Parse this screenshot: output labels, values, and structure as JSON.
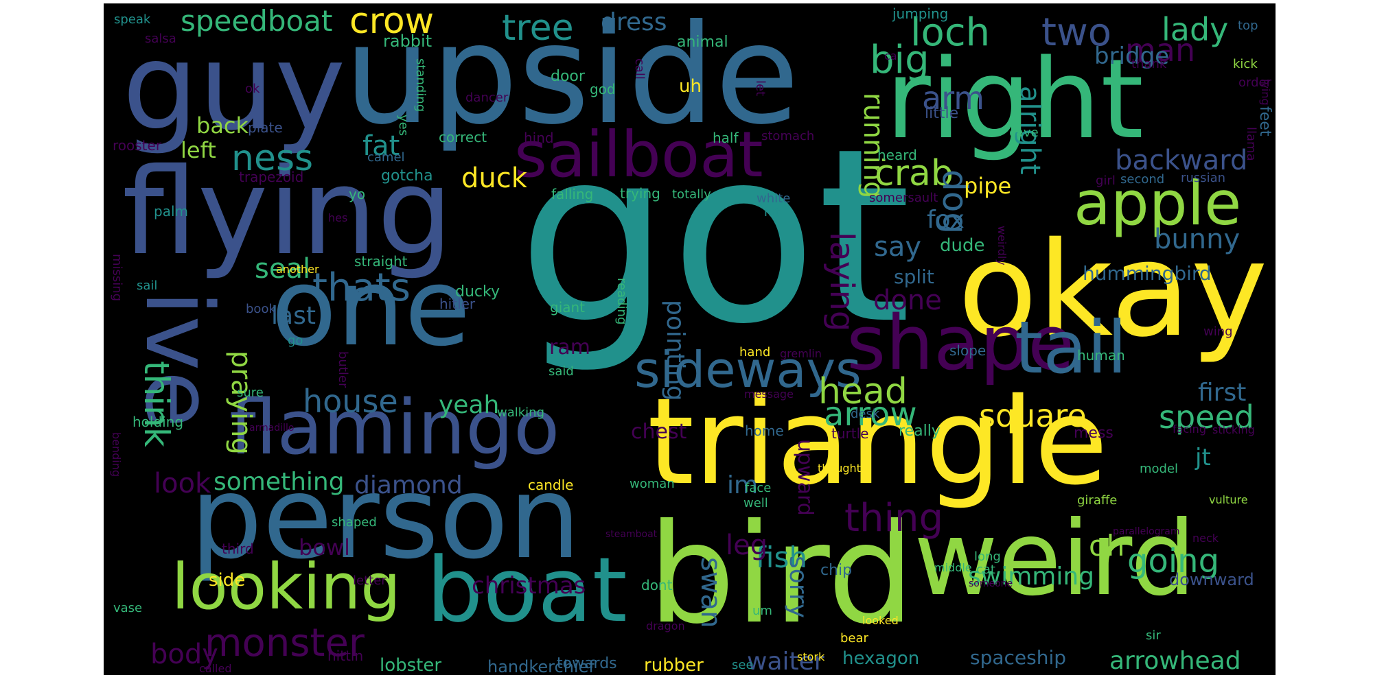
{
  "background": "#000000",
  "palette": {
    "p": "#440154",
    "i": "#3b528b",
    "b": "#31688e",
    "t": "#21918c",
    "g": "#35b779",
    "l": "#90d743",
    "y": "#fde725"
  },
  "words": [
    {
      "text": "got",
      "color": "#21918c"
    },
    {
      "text": "triangle",
      "color": "#fde725"
    },
    {
      "text": "upside",
      "color": "#31688e"
    },
    {
      "text": "bird",
      "color": "#90d743"
    },
    {
      "text": "person",
      "color": "#31688e"
    },
    {
      "text": "okay",
      "color": "#fde725"
    },
    {
      "text": "right",
      "color": "#35b779"
    },
    {
      "text": "guy",
      "color": "#3b528b"
    },
    {
      "text": "flying",
      "color": "#3b528b"
    },
    {
      "text": "one",
      "color": "#31688e"
    },
    {
      "text": "weird",
      "color": "#90d743"
    },
    {
      "text": "boat",
      "color": "#21918c"
    },
    {
      "text": "flamingo",
      "color": "#3b528b"
    },
    {
      "text": "shape",
      "color": "#440154"
    },
    {
      "text": "sailboat",
      "color": "#440154"
    },
    {
      "text": "ive",
      "color": "#3b528b"
    },
    {
      "text": "tail",
      "color": "#31688e"
    },
    {
      "text": "looking",
      "color": "#90d743"
    },
    {
      "text": "apple",
      "color": "#90d743"
    },
    {
      "text": "sideways",
      "color": "#31688e"
    },
    {
      "text": "crow",
      "color": "#fde725"
    },
    {
      "text": "ness",
      "color": "#21918c"
    },
    {
      "text": "thats",
      "color": "#31688e"
    },
    {
      "text": "monster",
      "color": "#440154"
    },
    {
      "text": "speedboat",
      "color": "#35b779"
    },
    {
      "text": "tree",
      "color": "#21918c"
    },
    {
      "text": "two",
      "color": "#3b528b"
    },
    {
      "text": "loch",
      "color": "#35b779"
    },
    {
      "text": "big",
      "color": "#35b779"
    },
    {
      "text": "crab",
      "color": "#90d743"
    },
    {
      "text": "head",
      "color": "#90d743"
    },
    {
      "text": "thing",
      "color": "#440154"
    },
    {
      "text": "arrow",
      "color": "#35b779"
    },
    {
      "text": "house",
      "color": "#31688e"
    },
    {
      "text": "laying",
      "color": "#440154"
    },
    {
      "text": "fish",
      "color": "#21918c"
    },
    {
      "text": "lady",
      "color": "#35b779"
    },
    {
      "text": "man",
      "color": "#440154"
    },
    {
      "text": "arm",
      "color": "#3b528b"
    },
    {
      "text": "going",
      "color": "#35b779"
    },
    {
      "text": "speed",
      "color": "#35b779"
    },
    {
      "text": "square",
      "color": "#fde725"
    },
    {
      "text": "think",
      "color": "#35b779"
    },
    {
      "text": "dog",
      "color": "#31688e"
    },
    {
      "text": "running",
      "color": "#90d743"
    },
    {
      "text": "alright",
      "color": "#21918c"
    },
    {
      "text": "duck",
      "color": "#fde725"
    },
    {
      "text": "backward",
      "color": "#3b528b"
    },
    {
      "text": "bunny",
      "color": "#31688e"
    },
    {
      "text": "seal",
      "color": "#35b779"
    },
    {
      "text": "praying",
      "color": "#90d743"
    },
    {
      "text": "look",
      "color": "#440154"
    },
    {
      "text": "body",
      "color": "#440154"
    },
    {
      "text": "something",
      "color": "#35b779"
    },
    {
      "text": "diamond",
      "color": "#3b528b"
    },
    {
      "text": "christmas",
      "color": "#440154"
    },
    {
      "text": "leg",
      "color": "#440154"
    },
    {
      "text": "swan",
      "color": "#31688e"
    },
    {
      "text": "oh",
      "color": "#90d743"
    },
    {
      "text": "swimming",
      "color": "#35b779"
    },
    {
      "text": "arrowhead",
      "color": "#35b779"
    },
    {
      "text": "waiter",
      "color": "#3b528b"
    },
    {
      "text": "sorry",
      "color": "#31688e"
    },
    {
      "text": "yeah",
      "color": "#35b779"
    },
    {
      "text": "done",
      "color": "#440154"
    },
    {
      "text": "say",
      "color": "#31688e"
    },
    {
      "text": "fox",
      "color": "#31688e"
    },
    {
      "text": "pointing",
      "color": "#31688e"
    },
    {
      "text": "fat",
      "color": "#21918c"
    },
    {
      "text": "im",
      "color": "#31688e"
    },
    {
      "text": "last",
      "color": "#31688e"
    },
    {
      "text": "first",
      "color": "#31688e"
    },
    {
      "text": "dress",
      "color": "#31688e"
    },
    {
      "text": "back",
      "color": "#90d743"
    },
    {
      "text": "left",
      "color": "#90d743"
    },
    {
      "text": "pipe",
      "color": "#fde725"
    },
    {
      "text": "bowl",
      "color": "#440154"
    },
    {
      "text": "upward",
      "color": "#440154"
    },
    {
      "text": "jt",
      "color": "#21918c"
    },
    {
      "text": "chest",
      "color": "#440154"
    },
    {
      "text": "ram",
      "color": "#440154"
    },
    {
      "text": "hummingbird",
      "color": "#31688e"
    },
    {
      "text": "split",
      "color": "#31688e"
    },
    {
      "text": "dude",
      "color": "#35b779"
    },
    {
      "text": "spaceship",
      "color": "#31688e"
    },
    {
      "text": "hexagon",
      "color": "#21918c"
    },
    {
      "text": "rubber",
      "color": "#fde725"
    },
    {
      "text": "handkerchief",
      "color": "#31688e"
    },
    {
      "text": "lobster",
      "color": "#35b779"
    },
    {
      "text": "towards",
      "color": "#31688e"
    },
    {
      "text": "bridge",
      "color": "#31688e"
    },
    {
      "text": "downward",
      "color": "#3b528b"
    },
    {
      "text": "side",
      "color": "#fde725"
    },
    {
      "text": "feet",
      "color": "#31688e"
    },
    {
      "text": "rabbit",
      "color": "#35b779"
    },
    {
      "text": "animal",
      "color": "#35b779"
    },
    {
      "text": "uh",
      "color": "#fde725"
    },
    {
      "text": "speak",
      "color": "#21918c"
    },
    {
      "text": "salsa",
      "color": "#440154"
    },
    {
      "text": "jumping",
      "color": "#21918c"
    },
    {
      "text": "top",
      "color": "#31688e"
    },
    {
      "text": "kick",
      "color": "#90d743"
    },
    {
      "text": "thank",
      "color": "#440154"
    },
    {
      "text": "order",
      "color": "#440154"
    },
    {
      "text": "ok",
      "color": "#440154"
    },
    {
      "text": "standing",
      "color": "#35b779"
    },
    {
      "text": "dancer",
      "color": "#440154"
    },
    {
      "text": "door",
      "color": "#35b779"
    },
    {
      "text": "god",
      "color": "#35b779"
    },
    {
      "text": "call",
      "color": "#440154"
    },
    {
      "text": "let",
      "color": "#440154"
    },
    {
      "text": "little",
      "color": "#3b528b"
    },
    {
      "text": "cave",
      "color": "#35b779"
    },
    {
      "text": "plate",
      "color": "#3b528b"
    },
    {
      "text": "yes",
      "color": "#35b779"
    },
    {
      "text": "correct",
      "color": "#35b779"
    },
    {
      "text": "hind",
      "color": "#440154"
    },
    {
      "text": "half",
      "color": "#35b779"
    },
    {
      "text": "stomach",
      "color": "#440154"
    },
    {
      "text": "rooster",
      "color": "#440154"
    },
    {
      "text": "camel",
      "color": "#31688e"
    },
    {
      "text": "heard",
      "color": "#35b779"
    },
    {
      "text": "girl",
      "color": "#440154"
    },
    {
      "text": "second",
      "color": "#31688e"
    },
    {
      "text": "russian",
      "color": "#3b528b"
    },
    {
      "text": "llama",
      "color": "#440154"
    },
    {
      "text": "trapezoid",
      "color": "#440154"
    },
    {
      "text": "gotcha",
      "color": "#21918c"
    },
    {
      "text": "lying",
      "color": "#440154"
    },
    {
      "text": "yo",
      "color": "#35b779"
    },
    {
      "text": "falling",
      "color": "#35b779"
    },
    {
      "text": "trying",
      "color": "#35b779"
    },
    {
      "text": "totally",
      "color": "#35b779"
    },
    {
      "text": "white",
      "color": "#31688e"
    },
    {
      "text": "somersault",
      "color": "#440154"
    },
    {
      "text": "palm",
      "color": "#21918c"
    },
    {
      "text": "hes",
      "color": "#440154"
    },
    {
      "text": "hit",
      "color": "#21918c"
    },
    {
      "text": "weirdly",
      "color": "#440154"
    },
    {
      "text": "another",
      "color": "#fde725"
    },
    {
      "text": "straight",
      "color": "#35b779"
    },
    {
      "text": "missing",
      "color": "#440154"
    },
    {
      "text": "sail",
      "color": "#21918c"
    },
    {
      "text": "ducky",
      "color": "#35b779"
    },
    {
      "text": "hitler",
      "color": "#3b528b"
    },
    {
      "text": "giant",
      "color": "#35b779"
    },
    {
      "text": "book",
      "color": "#3b528b"
    },
    {
      "text": "reading",
      "color": "#35b779"
    },
    {
      "text": "go",
      "color": "#21918c"
    },
    {
      "text": "hand",
      "color": "#fde725"
    },
    {
      "text": "gremlin",
      "color": "#440154"
    },
    {
      "text": "slope",
      "color": "#31688e"
    },
    {
      "text": "human",
      "color": "#35b779"
    },
    {
      "text": "wing",
      "color": "#440154"
    },
    {
      "text": "butler",
      "color": "#440154"
    },
    {
      "text": "said",
      "color": "#35b779"
    },
    {
      "text": "sure",
      "color": "#35b779"
    },
    {
      "text": "message",
      "color": "#440154"
    },
    {
      "text": "holding",
      "color": "#35b779"
    },
    {
      "text": "desk",
      "color": "#31688e"
    },
    {
      "text": "armadillo",
      "color": "#440154"
    },
    {
      "text": "walking",
      "color": "#35b779"
    },
    {
      "text": "home",
      "color": "#31688e"
    },
    {
      "text": "turtle",
      "color": "#440154"
    },
    {
      "text": "really",
      "color": "#35b779"
    },
    {
      "text": "mess",
      "color": "#440154"
    },
    {
      "text": "facing",
      "color": "#440154"
    },
    {
      "text": "sticking",
      "color": "#440154"
    },
    {
      "text": "bending",
      "color": "#440154"
    },
    {
      "text": "thought",
      "color": "#fde725"
    },
    {
      "text": "model",
      "color": "#35b779"
    },
    {
      "text": "candle",
      "color": "#fde725"
    },
    {
      "text": "woman",
      "color": "#35b779"
    },
    {
      "text": "face",
      "color": "#35b779"
    },
    {
      "text": "well",
      "color": "#35b779"
    },
    {
      "text": "giraffe",
      "color": "#90d743"
    },
    {
      "text": "vulture",
      "color": "#90d743"
    },
    {
      "text": "shaped",
      "color": "#35b779"
    },
    {
      "text": "steamboat",
      "color": "#440154"
    },
    {
      "text": "long",
      "color": "#35b779"
    },
    {
      "text": "parallelogram",
      "color": "#440154"
    },
    {
      "text": "neck",
      "color": "#440154"
    },
    {
      "text": "third",
      "color": "#440154"
    },
    {
      "text": "chip",
      "color": "#31688e"
    },
    {
      "text": "middle",
      "color": "#35b779"
    },
    {
      "text": "cat",
      "color": "#35b779"
    },
    {
      "text": "letter",
      "color": "#440154"
    },
    {
      "text": "dont",
      "color": "#35b779"
    },
    {
      "text": "someone",
      "color": "#440154"
    },
    {
      "text": "vase",
      "color": "#35b779"
    },
    {
      "text": "um",
      "color": "#35b779"
    },
    {
      "text": "dragon",
      "color": "#440154"
    },
    {
      "text": "looked",
      "color": "#fde725"
    },
    {
      "text": "bear",
      "color": "#fde725"
    },
    {
      "text": "sir",
      "color": "#35b779"
    },
    {
      "text": "hittin",
      "color": "#440154"
    },
    {
      "text": "called",
      "color": "#440154"
    },
    {
      "text": "see",
      "color": "#21918c"
    },
    {
      "text": "stork",
      "color": "#fde725"
    },
    {
      "text": "ca",
      "color": "#440154"
    }
  ]
}
